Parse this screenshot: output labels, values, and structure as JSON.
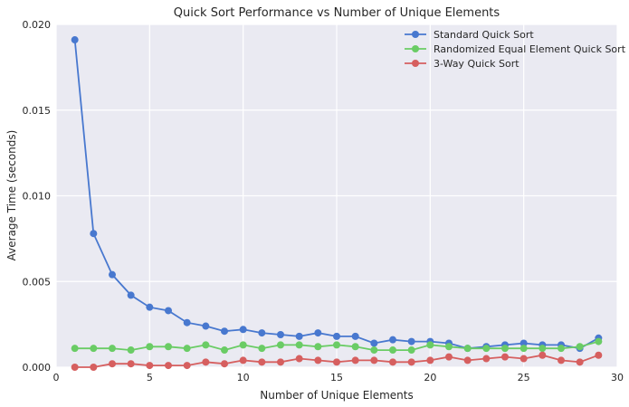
{
  "chart_data": {
    "type": "line",
    "title": "Quick Sort Performance vs Number of Unique Elements",
    "xlabel": "Number of Unique Elements",
    "ylabel": "Average Time (seconds)",
    "xlim": [
      0,
      30
    ],
    "ylim": [
      0,
      0.02
    ],
    "xticks": [
      0,
      5,
      10,
      15,
      20,
      25,
      30
    ],
    "xtick_labels": [
      "0",
      "5",
      "10",
      "15",
      "20",
      "25",
      "30"
    ],
    "yticks": [
      0,
      0.005,
      0.01,
      0.015,
      0.02
    ],
    "ytick_labels": [
      "0.000",
      "0.005",
      "0.010",
      "0.015",
      "0.020"
    ],
    "grid": true,
    "legend_position": "top-right",
    "background_color": "#eaeaf2",
    "x": [
      1,
      2,
      3,
      4,
      5,
      6,
      7,
      8,
      9,
      10,
      11,
      12,
      13,
      14,
      15,
      16,
      17,
      18,
      19,
      20,
      21,
      22,
      23,
      24,
      25,
      26,
      27,
      28,
      29
    ],
    "series": [
      {
        "name": "Standard Quick Sort",
        "color": "#4878cf",
        "values": [
          0.0191,
          0.0078,
          0.0054,
          0.0042,
          0.0035,
          0.0033,
          0.0026,
          0.0024,
          0.0021,
          0.0022,
          0.002,
          0.0019,
          0.0018,
          0.002,
          0.0018,
          0.0018,
          0.0014,
          0.0016,
          0.0015,
          0.0015,
          0.0014,
          0.0011,
          0.0012,
          0.0013,
          0.0014,
          0.0013,
          0.0013,
          0.0011,
          0.0017
        ]
      },
      {
        "name": "Randomized Equal Element Quick Sort",
        "color": "#6acc65",
        "values": [
          0.0011,
          0.0011,
          0.0011,
          0.001,
          0.0012,
          0.0012,
          0.0011,
          0.0013,
          0.001,
          0.0013,
          0.0011,
          0.0013,
          0.0013,
          0.0012,
          0.0013,
          0.0012,
          0.001,
          0.001,
          0.001,
          0.0013,
          0.0012,
          0.0011,
          0.0011,
          0.0011,
          0.0011,
          0.0011,
          0.0011,
          0.0012,
          0.0015
        ]
      },
      {
        "name": "3-Way Quick Sort",
        "color": "#d65f5f",
        "values": [
          0.0,
          0.0,
          0.0002,
          0.0002,
          0.0001,
          0.0001,
          0.0001,
          0.0003,
          0.0002,
          0.0004,
          0.0003,
          0.0003,
          0.0005,
          0.0004,
          0.0003,
          0.0004,
          0.0004,
          0.0003,
          0.0003,
          0.0004,
          0.0006,
          0.0004,
          0.0005,
          0.0006,
          0.0005,
          0.0007,
          0.0004,
          0.0003,
          0.0007
        ]
      }
    ]
  }
}
